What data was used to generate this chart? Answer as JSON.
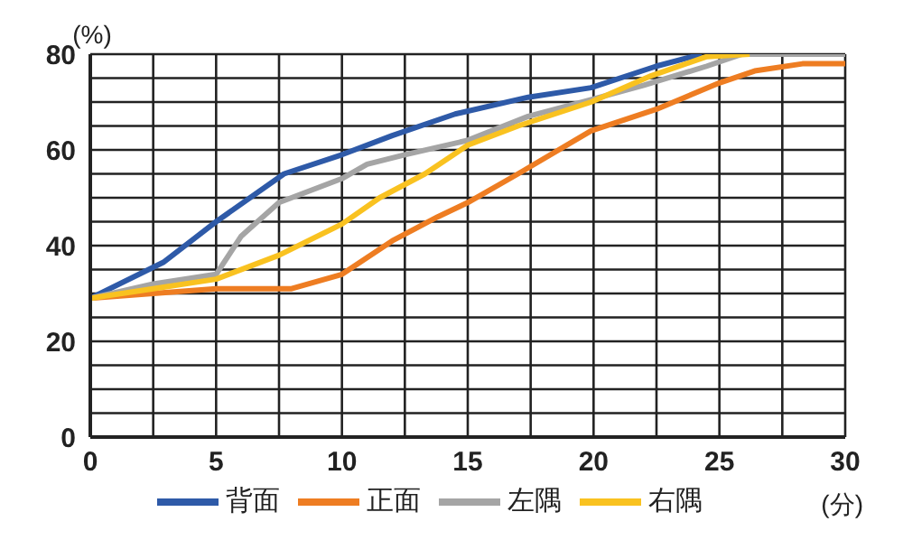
{
  "chart_data": {
    "type": "line",
    "xlabel": "(分)",
    "ylabel": "(%)",
    "xlim": [
      0,
      30
    ],
    "ylim": [
      0,
      80
    ],
    "xticks": [
      0,
      {
        "value": 2.5,
        "label": null
      },
      5,
      {
        "value": 7.5,
        "label": null
      },
      10,
      {
        "value": 12.5,
        "label": null
      },
      15,
      {
        "value": 17.5,
        "label": null
      },
      20,
      {
        "value": 22.5,
        "label": null
      },
      25,
      {
        "value": 27.5,
        "label": null
      },
      30
    ],
    "yticks": [
      0,
      {
        "value": 5,
        "label": null
      },
      {
        "value": 10,
        "label": null
      },
      {
        "value": 15,
        "label": null
      },
      20,
      {
        "value": 25,
        "label": null
      },
      {
        "value": 30,
        "label": null
      },
      {
        "value": 35,
        "label": null
      },
      40,
      {
        "value": 45,
        "label": null
      },
      {
        "value": 50,
        "label": null
      },
      {
        "value": 55,
        "label": null
      },
      60,
      {
        "value": 65,
        "label": null
      },
      {
        "value": 70,
        "label": null
      },
      {
        "value": 75,
        "label": null
      },
      80
    ],
    "grid": true,
    "legend": "bottom",
    "marker": "none",
    "line_style": "solid",
    "series": [
      {
        "name": "背面",
        "color": "#2e5aa8",
        "x": [
          0,
          2.9,
          5,
          7.7,
          10,
          12,
          14.5,
          17.4,
          19.9,
          22.5,
          24.3
        ],
        "values": [
          29,
          36.5,
          45,
          55,
          59,
          63,
          67.5,
          71,
          73,
          77.5,
          80
        ]
      },
      {
        "name": "正面",
        "color": "#ee7d22",
        "x": [
          0,
          2.5,
          5,
          8,
          10,
          12,
          13.8,
          15,
          17,
          19.9,
          22.5,
          25,
          26.4,
          28.3,
          30
        ],
        "values": [
          29,
          30,
          31,
          31,
          34,
          41,
          46,
          49,
          55,
          64,
          68.5,
          74,
          76.5,
          78,
          78
        ]
      },
      {
        "name": "左隅",
        "color": "#a5a5a5",
        "x": [
          0,
          2.5,
          5,
          6,
          7.5,
          10,
          11,
          12.5,
          15,
          17.4,
          19.9,
          22,
          24.5,
          25.9,
          30
        ],
        "values": [
          29,
          32,
          34,
          42,
          49,
          54,
          57,
          59,
          62,
          67,
          70.5,
          73.5,
          77.5,
          80,
          80
        ]
      },
      {
        "name": "右隅",
        "color": "#f9c220",
        "x": [
          0,
          2.5,
          5,
          7.5,
          10,
          11.5,
          13.3,
          15,
          17,
          19.9,
          22.3,
          24.5,
          26.2
        ],
        "values": [
          29,
          31,
          33,
          38,
          44.5,
          50,
          55,
          61,
          65,
          70,
          75.5,
          79.5,
          80
        ]
      }
    ]
  }
}
